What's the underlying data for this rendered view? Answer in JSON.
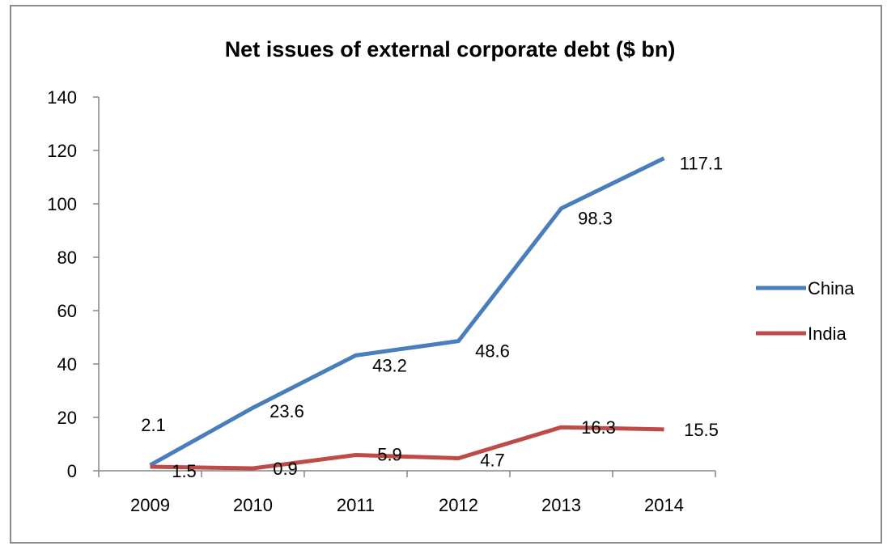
{
  "chart_data": {
    "type": "line",
    "title": "Net issues of external corporate debt ($ bn)",
    "categories": [
      "2009",
      "2010",
      "2011",
      "2012",
      "2013",
      "2014"
    ],
    "ylim": [
      0,
      140
    ],
    "yticks": [
      0,
      20,
      40,
      60,
      80,
      100,
      120,
      140
    ],
    "grid": false,
    "legend_position": "right",
    "series": [
      {
        "name": "China",
        "color": "#4a7ebb",
        "values": [
          2.1,
          23.6,
          43.2,
          48.6,
          98.3,
          117.1
        ],
        "labels": [
          "2.1",
          "23.6",
          "43.2",
          "48.6",
          "98.3",
          "117.1"
        ]
      },
      {
        "name": "India",
        "color": "#be4b48",
        "values": [
          1.5,
          0.9,
          5.9,
          4.7,
          16.3,
          15.5
        ],
        "labels": [
          "1.5",
          "0.9",
          "5.9",
          "4.7",
          "16.3",
          "15.5"
        ]
      }
    ]
  }
}
